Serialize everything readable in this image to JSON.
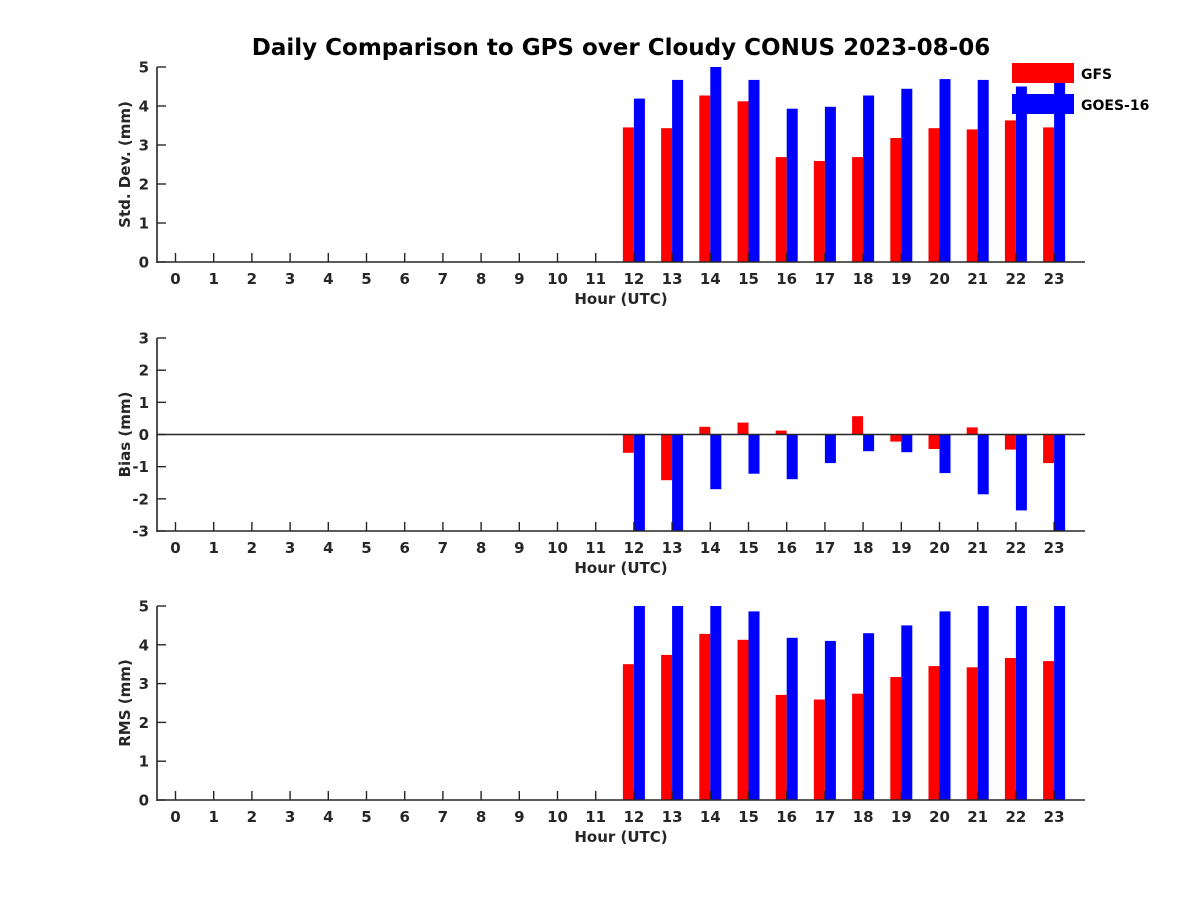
{
  "chart_data": [
    {
      "type": "bar",
      "title": "Daily Comparison to GPS over Cloudy CONUS 2023-08-06",
      "xlabel": "Hour (UTC)",
      "ylabel": "Std. Dev. (mm)",
      "categories": [
        "0",
        "1",
        "2",
        "3",
        "4",
        "5",
        "6",
        "7",
        "8",
        "9",
        "10",
        "11",
        "12",
        "13",
        "14",
        "15",
        "16",
        "17",
        "18",
        "19",
        "20",
        "21",
        "22",
        "23"
      ],
      "ylim": [
        0,
        5
      ],
      "yticks": [
        0,
        1,
        2,
        3,
        4,
        5
      ],
      "legend": "top-right",
      "series": [
        {
          "name": "GFS",
          "color": "#ff0000",
          "values": [
            null,
            null,
            null,
            null,
            null,
            null,
            null,
            null,
            null,
            null,
            null,
            null,
            3.45,
            3.43,
            4.27,
            4.12,
            2.69,
            2.59,
            2.69,
            3.18,
            3.43,
            3.4,
            3.63,
            3.45
          ]
        },
        {
          "name": "GOES-16",
          "color": "#0000ff",
          "values": [
            null,
            null,
            null,
            null,
            null,
            null,
            null,
            null,
            null,
            null,
            null,
            null,
            4.19,
            4.67,
            5.0,
            4.67,
            3.93,
            3.98,
            4.27,
            4.44,
            4.69,
            4.67,
            4.5,
            4.67
          ]
        }
      ]
    },
    {
      "type": "bar",
      "title": "",
      "xlabel": "Hour (UTC)",
      "ylabel": "Bias (mm)",
      "categories": [
        "0",
        "1",
        "2",
        "3",
        "4",
        "5",
        "6",
        "7",
        "8",
        "9",
        "10",
        "11",
        "12",
        "13",
        "14",
        "15",
        "16",
        "17",
        "18",
        "19",
        "20",
        "21",
        "22",
        "23"
      ],
      "ylim": [
        -3,
        3
      ],
      "yticks": [
        -3,
        -2,
        -1,
        0,
        1,
        2,
        3
      ],
      "zero_line": true,
      "series": [
        {
          "name": "GFS",
          "color": "#ff0000",
          "values": [
            null,
            null,
            null,
            null,
            null,
            null,
            null,
            null,
            null,
            null,
            null,
            null,
            -0.57,
            -1.42,
            0.24,
            0.37,
            0.12,
            0.0,
            0.57,
            -0.22,
            -0.45,
            0.22,
            -0.47,
            -0.89
          ]
        },
        {
          "name": "GOES-16",
          "color": "#0000ff",
          "values": [
            null,
            null,
            null,
            null,
            null,
            null,
            null,
            null,
            null,
            null,
            null,
            null,
            -3.0,
            -3.0,
            -1.7,
            -1.22,
            -1.39,
            -0.89,
            -0.52,
            -0.55,
            -1.2,
            -1.86,
            -2.36,
            -3.0
          ]
        }
      ]
    },
    {
      "type": "bar",
      "title": "",
      "xlabel": "Hour (UTC)",
      "ylabel": "RMS (mm)",
      "categories": [
        "0",
        "1",
        "2",
        "3",
        "4",
        "5",
        "6",
        "7",
        "8",
        "9",
        "10",
        "11",
        "12",
        "13",
        "14",
        "15",
        "16",
        "17",
        "18",
        "19",
        "20",
        "21",
        "22",
        "23"
      ],
      "ylim": [
        0,
        5
      ],
      "yticks": [
        0,
        1,
        2,
        3,
        4,
        5
      ],
      "series": [
        {
          "name": "GFS",
          "color": "#ff0000",
          "values": [
            null,
            null,
            null,
            null,
            null,
            null,
            null,
            null,
            null,
            null,
            null,
            null,
            3.5,
            3.74,
            4.28,
            4.13,
            2.71,
            2.59,
            2.74,
            3.17,
            3.45,
            3.42,
            3.66,
            3.58
          ]
        },
        {
          "name": "GOES-16",
          "color": "#0000ff",
          "values": [
            null,
            null,
            null,
            null,
            null,
            null,
            null,
            null,
            null,
            null,
            null,
            null,
            5.0,
            5.0,
            5.0,
            4.86,
            4.18,
            4.1,
            4.3,
            4.5,
            4.86,
            5.0,
            5.0,
            5.0
          ]
        }
      ]
    }
  ]
}
